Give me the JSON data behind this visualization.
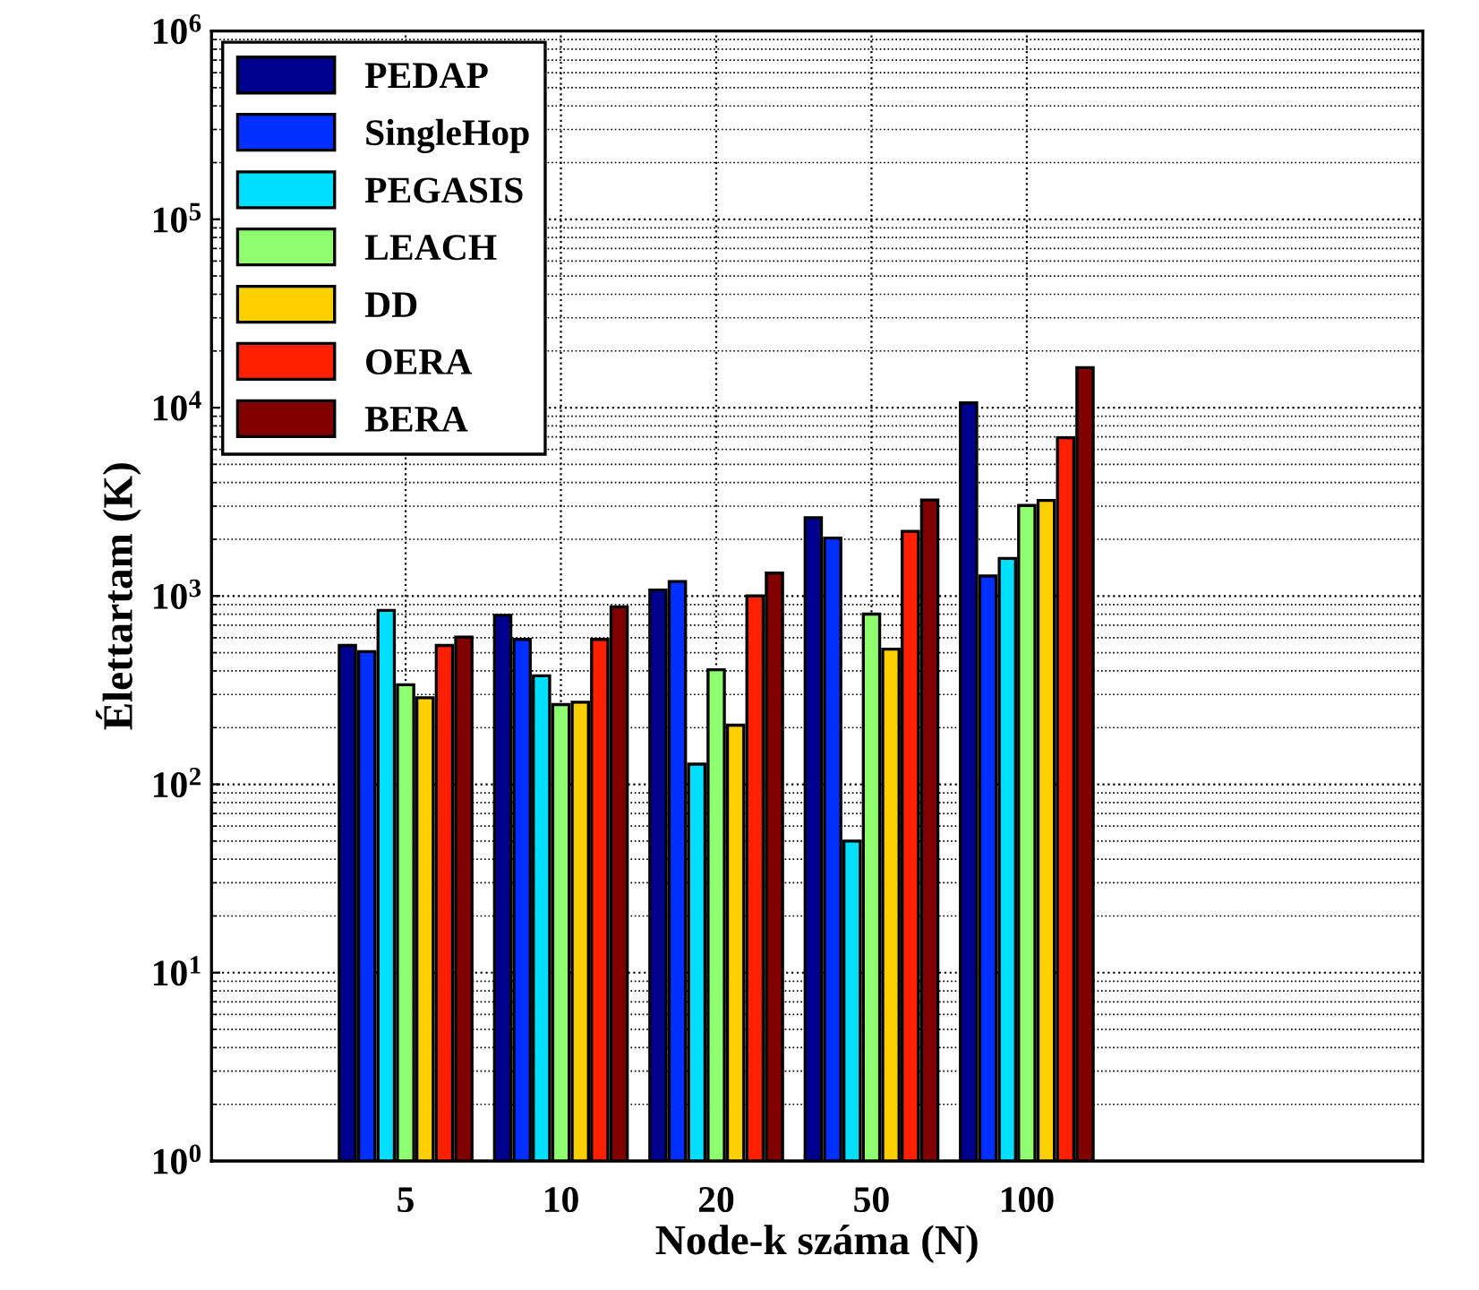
{
  "chart_data": {
    "type": "bar",
    "xlabel": "Node-k száma (N)",
    "ylabel": "Élettartam (K)",
    "categories": [
      "5",
      "10",
      "20",
      "50",
      "100"
    ],
    "series": [
      {
        "name": "PEDAP",
        "color": "#00008f",
        "values": [
          546,
          789,
          1076,
          2606,
          10600
        ]
      },
      {
        "name": "SingleHop",
        "color": "#0030ff",
        "values": [
          507,
          588,
          1194,
          2032,
          1276
        ]
      },
      {
        "name": "PEGASIS",
        "color": "#00dfff",
        "values": [
          838,
          377,
          128,
          50,
          1581
        ]
      },
      {
        "name": "LEACH",
        "color": "#8fff70",
        "values": [
          338,
          265,
          406,
          801,
          3025
        ]
      },
      {
        "name": "DD",
        "color": "#ffcf00",
        "values": [
          288,
          273,
          206,
          522,
          3213
        ]
      },
      {
        "name": "OERA",
        "color": "#ff2000",
        "values": [
          546,
          588,
          1000,
          2204,
          6918
        ]
      },
      {
        "name": "BERA",
        "color": "#800000",
        "values": [
          605,
          875,
          1324,
          3236,
          16300
        ]
      }
    ],
    "log": "y",
    "ylim": [
      1,
      1000000
    ],
    "yticks": [
      {
        "value": 1,
        "label": "10$^{0}$"
      },
      {
        "value": 10,
        "label": "10$^{1}$"
      },
      {
        "value": 100,
        "label": "10$^{2}$"
      },
      {
        "value": 1000,
        "label": "10$^{3}$"
      },
      {
        "value": 10000,
        "label": "10$^{4}$"
      },
      {
        "value": 100000,
        "label": "10$^{5}$"
      },
      {
        "value": 1000000,
        "label": "10$^{6}$"
      }
    ],
    "grid": true,
    "legend": "top left"
  }
}
